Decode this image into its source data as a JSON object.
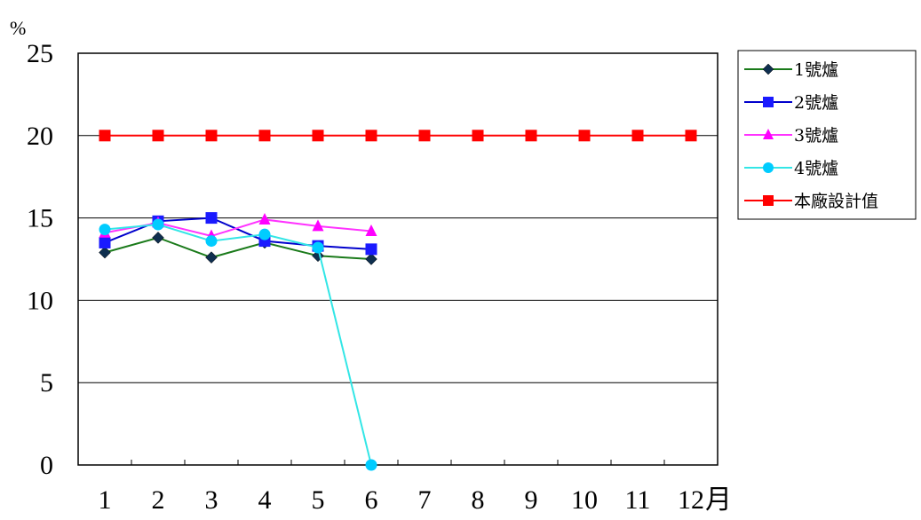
{
  "chart_data": {
    "type": "line",
    "title": "",
    "ylabel": "%",
    "xlabel": "月",
    "ylim": [
      0,
      25
    ],
    "y_ticks": [
      0,
      5,
      10,
      15,
      20,
      25
    ],
    "categories": [
      "1",
      "2",
      "3",
      "4",
      "5",
      "6",
      "7",
      "8",
      "9",
      "10",
      "11",
      "12"
    ],
    "grid": true,
    "legend_position": "right",
    "series": [
      {
        "name": "1號爐",
        "color": "#1a7a1a",
        "marker_color": "#0f2f4f",
        "marker": "diamond",
        "values": [
          12.9,
          13.8,
          12.6,
          13.5,
          12.7,
          12.5,
          null,
          null,
          null,
          null,
          null,
          null
        ]
      },
      {
        "name": "2號爐",
        "color": "#0000cc",
        "marker_color": "#1a1aff",
        "marker": "square",
        "values": [
          13.5,
          14.8,
          15.0,
          13.6,
          13.3,
          13.1,
          null,
          null,
          null,
          null,
          null,
          null
        ]
      },
      {
        "name": "3號爐",
        "color": "#ff33ff",
        "marker_color": "#ff00ff",
        "marker": "triangle",
        "values": [
          14.1,
          14.7,
          13.9,
          14.9,
          14.5,
          14.2,
          null,
          null,
          null,
          null,
          null,
          null
        ]
      },
      {
        "name": "4號爐",
        "color": "#33e6e6",
        "marker_color": "#00ccff",
        "marker": "circle",
        "values": [
          14.3,
          14.6,
          13.6,
          14.0,
          13.2,
          0,
          null,
          null,
          null,
          null,
          null,
          null
        ]
      },
      {
        "name": "本廠設計值",
        "color": "#ff0000",
        "marker_color": "#ff0000",
        "marker": "square",
        "values": [
          20,
          20,
          20,
          20,
          20,
          20,
          20,
          20,
          20,
          20,
          20,
          20
        ]
      }
    ]
  }
}
